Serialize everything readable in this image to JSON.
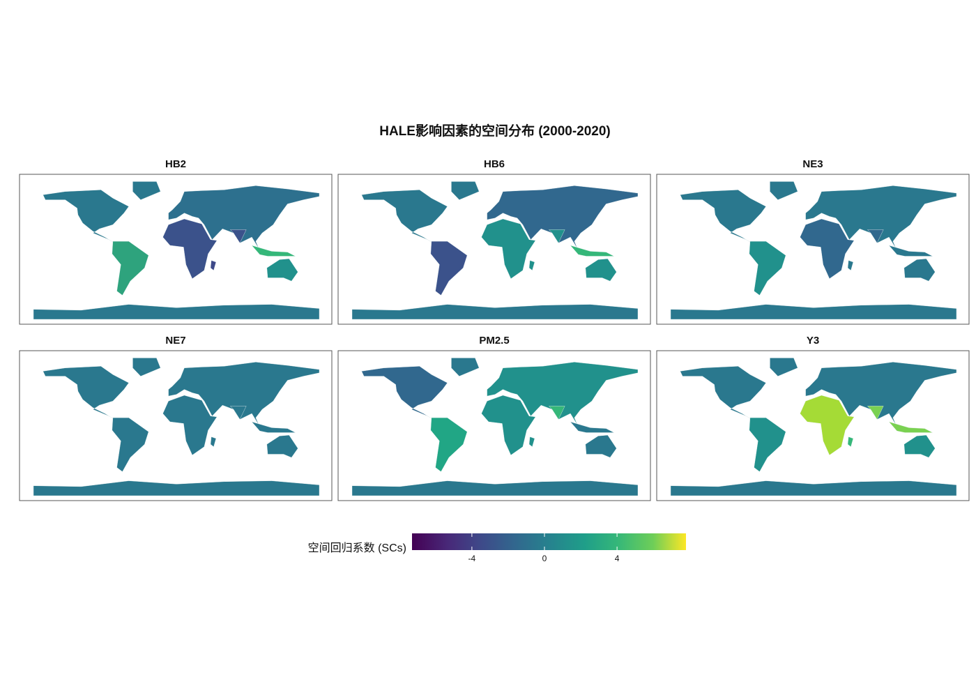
{
  "figure": {
    "title": "HALE影响因素的空间分布 (2000-2020)",
    "panels": [
      {
        "title": "HB2"
      },
      {
        "title": "HB6"
      },
      {
        "title": "NE3"
      },
      {
        "title": "NE7"
      },
      {
        "title": "PM2.5"
      },
      {
        "title": "Y3"
      }
    ],
    "legend": {
      "title": "空间回归系数 (SCs)",
      "limits": [
        -7.3,
        7.8
      ],
      "ticks": [
        -4,
        0,
        4
      ]
    }
  }
}
